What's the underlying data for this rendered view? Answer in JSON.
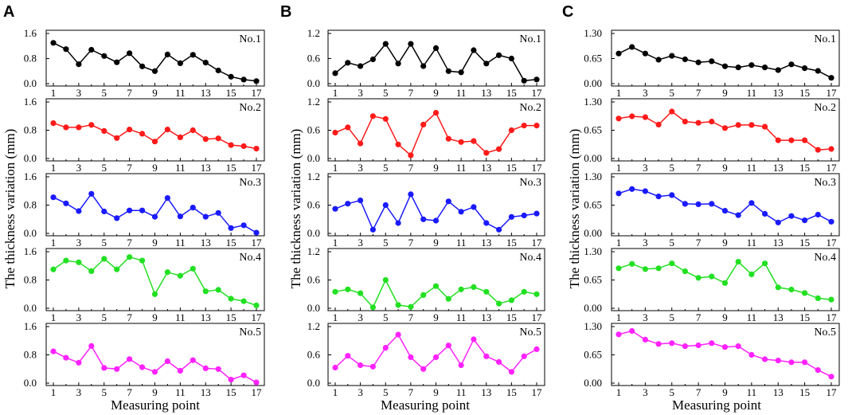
{
  "figure": {
    "y_axis_label": "The thickness variation (mm)",
    "x_axis_label": "Measuring point"
  },
  "colors": {
    "No.1": "#000000",
    "No.2": "#ff1a1a",
    "No.3": "#1a1aff",
    "No.4": "#22e022",
    "No.5": "#ff22ff"
  },
  "chart_data": [
    {
      "panel": "A",
      "type": "line",
      "x": [
        1,
        2,
        3,
        4,
        5,
        6,
        7,
        8,
        9,
        10,
        11,
        12,
        13,
        14,
        15,
        16,
        17
      ],
      "x_ticks": [
        "1",
        "3",
        "5",
        "7",
        "9",
        "11",
        "13",
        "15",
        "17"
      ],
      "xlabel": "Measuring point",
      "ylabel": "The thickness variation (mm)",
      "ylim": [
        0,
        1.6
      ],
      "y_ticks": [
        "0.0",
        "0.8",
        "1.6"
      ],
      "series": [
        {
          "name": "No.1",
          "values": [
            1.3,
            1.1,
            0.62,
            1.08,
            0.88,
            0.68,
            0.97,
            0.55,
            0.4,
            0.93,
            0.65,
            0.92,
            0.67,
            0.42,
            0.22,
            0.13,
            0.08
          ]
        },
        {
          "name": "No.2",
          "values": [
            1.0,
            0.88,
            0.88,
            0.95,
            0.78,
            0.58,
            0.82,
            0.7,
            0.48,
            0.82,
            0.6,
            0.8,
            0.55,
            0.57,
            0.38,
            0.35,
            0.28
          ]
        },
        {
          "name": "No.3",
          "values": [
            1.02,
            0.85,
            0.63,
            1.12,
            0.62,
            0.43,
            0.65,
            0.65,
            0.47,
            1.0,
            0.48,
            0.73,
            0.47,
            0.58,
            0.15,
            0.23,
            0.02
          ]
        },
        {
          "name": "No.4",
          "values": [
            1.1,
            1.35,
            1.3,
            1.05,
            1.4,
            1.1,
            1.45,
            1.35,
            0.4,
            1.02,
            0.92,
            1.12,
            0.48,
            0.52,
            0.27,
            0.2,
            0.08
          ]
        },
        {
          "name": "No.5",
          "values": [
            0.9,
            0.72,
            0.58,
            1.05,
            0.43,
            0.4,
            0.68,
            0.45,
            0.32,
            0.62,
            0.35,
            0.65,
            0.42,
            0.4,
            0.1,
            0.22,
            0.02
          ]
        }
      ]
    },
    {
      "panel": "B",
      "type": "line",
      "x": [
        1,
        2,
        3,
        4,
        5,
        6,
        7,
        8,
        9,
        10,
        11,
        12,
        13,
        14,
        15,
        16,
        17
      ],
      "x_ticks": [
        "1",
        "3",
        "5",
        "7",
        "9",
        "11",
        "13",
        "15",
        "17"
      ],
      "xlabel": "Measuring point",
      "ylabel": "The thickness variation (mm)",
      "ylim": [
        0,
        1.2
      ],
      "y_ticks": [
        "0.0",
        "0.6",
        "1.2"
      ],
      "series": [
        {
          "name": "No.1",
          "values": [
            0.25,
            0.5,
            0.42,
            0.58,
            0.95,
            0.48,
            0.95,
            0.42,
            0.85,
            0.3,
            0.27,
            0.8,
            0.48,
            0.68,
            0.6,
            0.07,
            0.1
          ]
        },
        {
          "name": "No.2",
          "values": [
            0.55,
            0.66,
            0.32,
            0.9,
            0.84,
            0.3,
            0.07,
            0.72,
            0.97,
            0.42,
            0.35,
            0.37,
            0.12,
            0.2,
            0.6,
            0.7,
            0.7
          ]
        },
        {
          "name": "No.3",
          "values": [
            0.52,
            0.63,
            0.7,
            0.08,
            0.6,
            0.22,
            0.83,
            0.3,
            0.27,
            0.68,
            0.46,
            0.56,
            0.22,
            0.08,
            0.35,
            0.38,
            0.42
          ]
        },
        {
          "name": "No.4",
          "values": [
            0.35,
            0.4,
            0.32,
            0.02,
            0.6,
            0.07,
            0.03,
            0.28,
            0.47,
            0.2,
            0.4,
            0.45,
            0.35,
            0.1,
            0.17,
            0.35,
            0.3
          ]
        },
        {
          "name": "No.5",
          "values": [
            0.33,
            0.58,
            0.38,
            0.35,
            0.75,
            1.03,
            0.55,
            0.3,
            0.55,
            0.8,
            0.38,
            0.93,
            0.57,
            0.45,
            0.24,
            0.57,
            0.72
          ]
        }
      ]
    },
    {
      "panel": "C",
      "type": "line",
      "x": [
        1,
        2,
        3,
        4,
        5,
        6,
        7,
        8,
        9,
        10,
        11,
        12,
        13,
        14,
        15,
        16,
        17
      ],
      "x_ticks": [
        "1",
        "3",
        "5",
        "7",
        "9",
        "11",
        "13",
        "15",
        "17"
      ],
      "xlabel": "Measuring point",
      "ylabel": "The thickness variation (mm)",
      "ylim": [
        0,
        1.3
      ],
      "y_ticks": [
        "0.00",
        "0.65",
        "1.30"
      ],
      "series": [
        {
          "name": "No.1",
          "values": [
            0.78,
            0.95,
            0.78,
            0.62,
            0.72,
            0.63,
            0.55,
            0.58,
            0.45,
            0.42,
            0.48,
            0.42,
            0.35,
            0.5,
            0.4,
            0.33,
            0.15
          ]
        },
        {
          "name": "No.2",
          "values": [
            0.92,
            0.97,
            0.95,
            0.78,
            1.08,
            0.85,
            0.82,
            0.85,
            0.7,
            0.77,
            0.77,
            0.73,
            0.42,
            0.42,
            0.42,
            0.2,
            0.22
          ]
        },
        {
          "name": "No.3",
          "values": [
            0.92,
            1.02,
            0.97,
            0.85,
            0.88,
            0.68,
            0.67,
            0.68,
            0.52,
            0.42,
            0.7,
            0.45,
            0.25,
            0.4,
            0.3,
            0.43,
            0.27
          ]
        },
        {
          "name": "No.4",
          "values": [
            0.92,
            1.02,
            0.9,
            0.92,
            1.03,
            0.85,
            0.7,
            0.73,
            0.58,
            1.07,
            0.78,
            1.03,
            0.48,
            0.43,
            0.35,
            0.23,
            0.2
          ]
        },
        {
          "name": "No.5",
          "values": [
            1.12,
            1.2,
            1.0,
            0.9,
            0.92,
            0.85,
            0.87,
            0.92,
            0.83,
            0.85,
            0.65,
            0.55,
            0.52,
            0.48,
            0.48,
            0.3,
            0.15
          ]
        }
      ]
    }
  ]
}
